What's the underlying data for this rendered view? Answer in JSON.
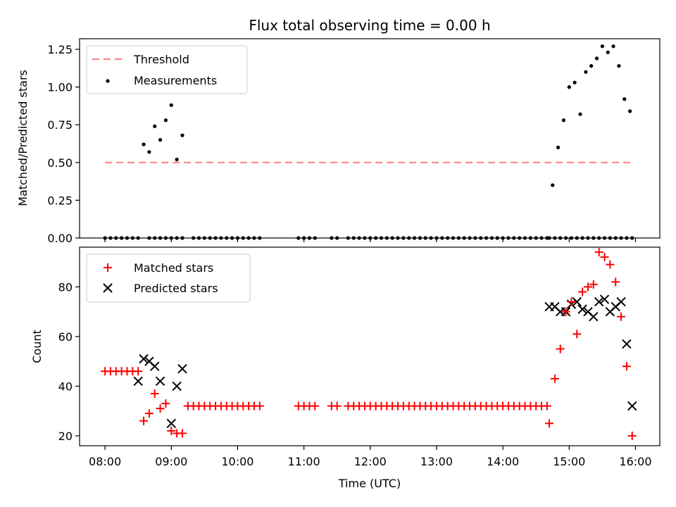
{
  "chart_data": [
    {
      "type": "scatter",
      "title": "Flux total observing time = 0.00 h",
      "xlabel": "",
      "ylabel": "Matched/Predicted stars",
      "xlim": [
        "07:37",
        "16:22"
      ],
      "ylim": [
        0,
        1.32
      ],
      "yticks": [
        "0.00",
        "0.25",
        "0.50",
        "0.75",
        "1.00",
        "1.25"
      ],
      "ytick_values": [
        0,
        0.25,
        0.5,
        0.75,
        1.0,
        1.25
      ],
      "legend": {
        "placement": "top-left",
        "entries": [
          "Threshold",
          "Measurements"
        ]
      },
      "threshold": {
        "name": "Threshold",
        "value": 0.5,
        "x_start": "08:00",
        "x_end": "15:57",
        "color": "#ff7f7f"
      },
      "series": [
        {
          "name": "Measurements",
          "marker": "dot",
          "color": "#000000",
          "x": [
            "08:00",
            "08:05",
            "08:10",
            "08:15",
            "08:20",
            "08:25",
            "08:30",
            "08:35",
            "08:40",
            "08:45",
            "08:50",
            "08:55",
            "09:00",
            "09:05",
            "09:10",
            "09:20",
            "09:25",
            "09:30",
            "09:35",
            "09:40",
            "09:45",
            "09:50",
            "09:55",
            "10:00",
            "10:05",
            "10:10",
            "10:15",
            "10:20",
            "10:55",
            "11:00",
            "11:05",
            "11:10",
            "11:25",
            "11:30",
            "11:40",
            "11:45",
            "11:50",
            "11:55",
            "12:00",
            "12:05",
            "12:10",
            "12:15",
            "12:20",
            "12:25",
            "12:30",
            "12:35",
            "12:40",
            "12:45",
            "12:50",
            "12:55",
            "13:00",
            "13:05",
            "13:10",
            "13:15",
            "13:20",
            "13:25",
            "13:30",
            "13:35",
            "13:40",
            "13:45",
            "13:50",
            "13:55",
            "14:00",
            "14:05",
            "14:10",
            "14:15",
            "14:20",
            "14:25",
            "14:30",
            "14:35",
            "14:40",
            "14:45",
            "14:50",
            "14:55",
            "15:00",
            "15:05",
            "15:10",
            "15:15",
            "15:20",
            "15:25",
            "15:30",
            "15:35",
            "15:40",
            "15:45",
            "15:50",
            "15:55",
            "08:35",
            "08:40",
            "08:45",
            "08:50",
            "08:55",
            "09:00",
            "09:05",
            "09:10",
            "14:42",
            "14:47",
            "14:52",
            "14:57",
            "15:02",
            "15:07",
            "15:12",
            "15:17",
            "15:22",
            "15:27",
            "15:32",
            "15:37",
            "15:42",
            "15:47",
            "15:52",
            "15:57"
          ],
          "y": [
            0,
            0,
            0,
            0,
            0,
            0,
            0,
            0.62,
            0.57,
            0.74,
            0.65,
            0.78,
            0.88,
            0.52,
            0.68,
            0,
            0,
            0,
            0,
            0,
            0,
            0,
            0,
            0,
            0,
            0,
            0,
            0,
            0,
            0,
            0,
            0,
            0,
            0,
            0,
            0,
            0,
            0,
            0,
            0,
            0,
            0,
            0,
            0,
            0,
            0,
            0,
            0,
            0,
            0,
            0,
            0,
            0,
            0,
            0,
            0,
            0,
            0,
            0,
            0,
            0,
            0,
            0,
            0,
            0,
            0,
            0,
            0,
            0,
            0,
            0,
            0.35,
            0.6,
            0.78,
            1.0,
            1.03,
            0.82,
            1.1,
            1.14,
            1.19,
            1.27,
            1.23,
            1.27,
            1.14,
            0.92,
            0.84,
            0.62,
            0,
            0,
            0,
            0,
            0,
            0,
            0,
            0,
            0,
            0,
            0,
            0,
            0,
            0,
            0,
            0,
            0,
            0,
            0,
            0,
            0,
            0,
            0
          ]
        }
      ]
    },
    {
      "type": "scatter",
      "title": "",
      "xlabel": "Time (UTC)",
      "ylabel": "Count",
      "xlim": [
        "07:37",
        "16:22"
      ],
      "ylim": [
        16,
        96
      ],
      "xticks": [
        "08:00",
        "09:00",
        "10:00",
        "11:00",
        "12:00",
        "13:00",
        "14:00",
        "15:00",
        "16:00"
      ],
      "yticks": [
        "20",
        "40",
        "60",
        "80"
      ],
      "ytick_values": [
        20,
        40,
        60,
        80
      ],
      "legend": {
        "placement": "top-left",
        "entries": [
          "Matched stars",
          "Predicted stars"
        ]
      },
      "series": [
        {
          "name": "Matched stars",
          "marker": "plus",
          "color": "#ff0000",
          "x": [
            "08:00",
            "08:05",
            "08:10",
            "08:15",
            "08:20",
            "08:25",
            "08:30",
            "08:35",
            "08:40",
            "08:45",
            "08:50",
            "08:55",
            "09:00",
            "09:05",
            "09:10",
            "09:15",
            "09:20",
            "09:25",
            "09:30",
            "09:35",
            "09:40",
            "09:45",
            "09:50",
            "09:55",
            "10:00",
            "10:05",
            "10:10",
            "10:15",
            "10:20",
            "10:55",
            "11:00",
            "11:05",
            "11:10",
            "11:25",
            "11:30",
            "11:40",
            "11:45",
            "11:50",
            "11:55",
            "12:00",
            "12:05",
            "12:10",
            "12:15",
            "12:20",
            "12:25",
            "12:30",
            "12:35",
            "12:40",
            "12:45",
            "12:50",
            "12:55",
            "13:00",
            "13:05",
            "13:10",
            "13:15",
            "13:20",
            "13:25",
            "13:30",
            "13:35",
            "13:40",
            "13:45",
            "13:50",
            "13:55",
            "14:00",
            "14:05",
            "14:10",
            "14:15",
            "14:20",
            "14:25",
            "14:30",
            "14:35",
            "14:40",
            "14:42",
            "14:47",
            "14:52",
            "14:57",
            "15:02",
            "15:07",
            "15:12",
            "15:17",
            "15:22",
            "15:27",
            "15:32",
            "15:37",
            "15:42",
            "15:47",
            "15:52",
            "15:57"
          ],
          "y": [
            46,
            46,
            46,
            46,
            46,
            46,
            46,
            26,
            29,
            37,
            31,
            33,
            22,
            21,
            21,
            32,
            32,
            32,
            32,
            32,
            32,
            32,
            32,
            32,
            32,
            32,
            32,
            32,
            32,
            32,
            32,
            32,
            32,
            32,
            32,
            32,
            32,
            32,
            32,
            32,
            32,
            32,
            32,
            32,
            32,
            32,
            32,
            32,
            32,
            32,
            32,
            32,
            32,
            32,
            32,
            32,
            32,
            32,
            32,
            32,
            32,
            32,
            32,
            32,
            32,
            32,
            32,
            32,
            32,
            32,
            32,
            32,
            25,
            43,
            55,
            70,
            74,
            61,
            78,
            80,
            81,
            94,
            92,
            89,
            82,
            68,
            48,
            20
          ]
        },
        {
          "name": "Predicted stars",
          "marker": "x",
          "color": "#000000",
          "x": [
            "08:30",
            "08:35",
            "08:40",
            "08:45",
            "08:50",
            "09:00",
            "09:05",
            "09:10",
            "14:42",
            "14:47",
            "14:52",
            "14:57",
            "15:02",
            "15:07",
            "15:12",
            "15:17",
            "15:22",
            "15:27",
            "15:32",
            "15:37",
            "15:42",
            "15:47",
            "15:52",
            "15:57"
          ],
          "y": [
            42,
            51,
            50,
            48,
            42,
            25,
            40,
            47,
            72,
            72,
            70,
            70,
            73,
            74,
            71,
            70,
            68,
            74,
            75,
            70,
            72,
            74,
            57,
            32
          ]
        }
      ]
    }
  ]
}
